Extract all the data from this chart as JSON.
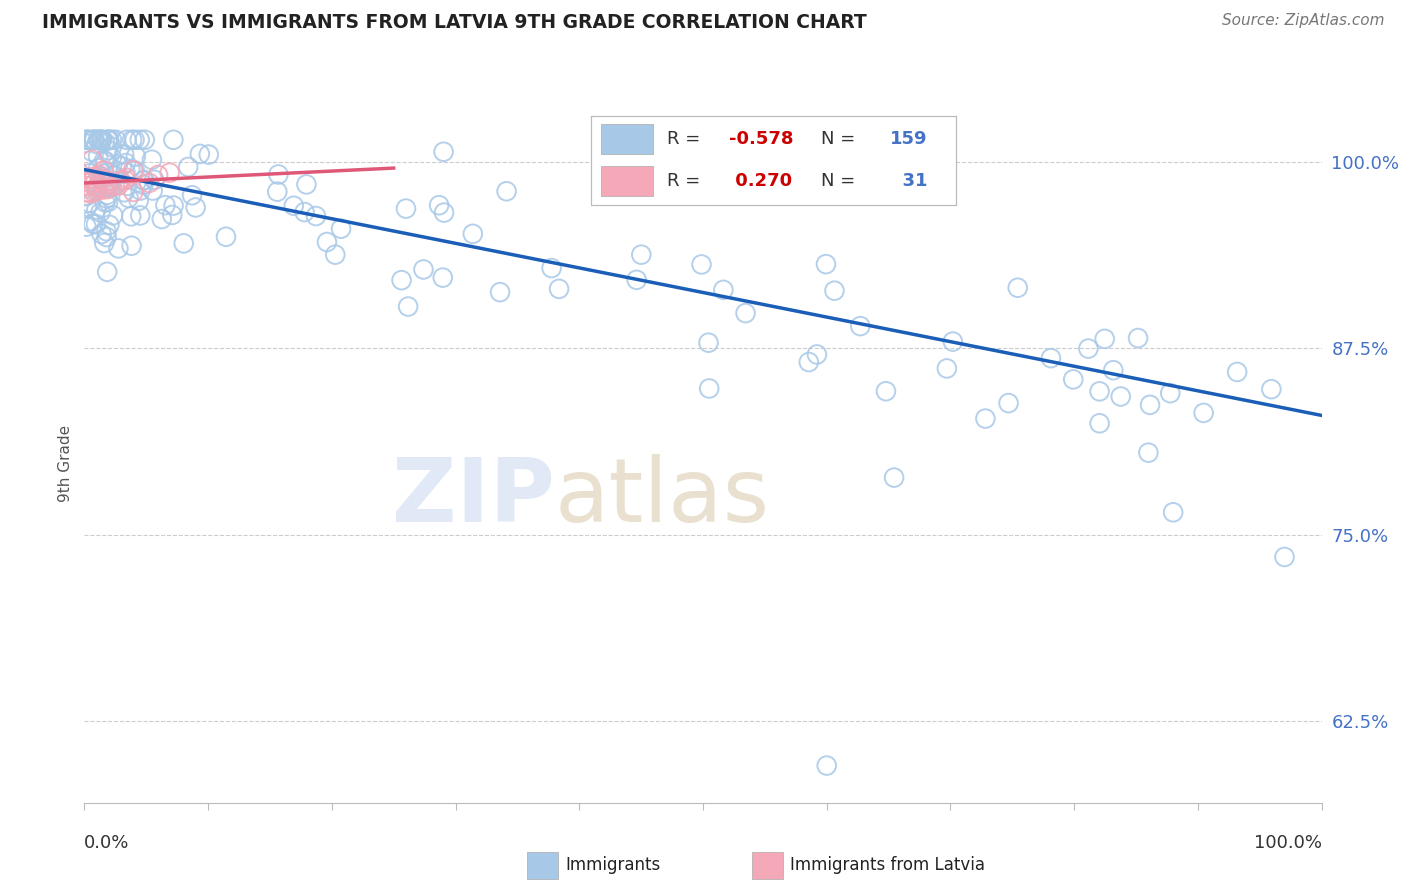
{
  "title": "IMMIGRANTS VS IMMIGRANTS FROM LATVIA 9TH GRADE CORRELATION CHART",
  "source_text": "Source: ZipAtlas.com",
  "ylabel": "9th Grade",
  "blue_label": "Immigrants",
  "pink_label": "Immigrants from Latvia",
  "blue_R": -0.578,
  "blue_N": 159,
  "pink_R": 0.27,
  "pink_N": 31,
  "blue_color": "#a8c8e8",
  "pink_color": "#f4a8b8",
  "blue_line_color": "#1a5eb8",
  "pink_line_color": "#e05878",
  "x_min": 0.0,
  "x_max": 100.0,
  "y_min": 57.0,
  "y_max": 102.5,
  "ytick_labels": [
    "62.5%",
    "75.0%",
    "87.5%",
    "100.0%"
  ],
  "ytick_values": [
    62.5,
    75.0,
    87.5,
    100.0
  ],
  "blue_trend_x": [
    0.0,
    100.0
  ],
  "blue_trend_y": [
    99.5,
    83.0
  ],
  "pink_trend_x": [
    0.0,
    25.0
  ],
  "pink_trend_y": [
    98.6,
    99.6
  ]
}
